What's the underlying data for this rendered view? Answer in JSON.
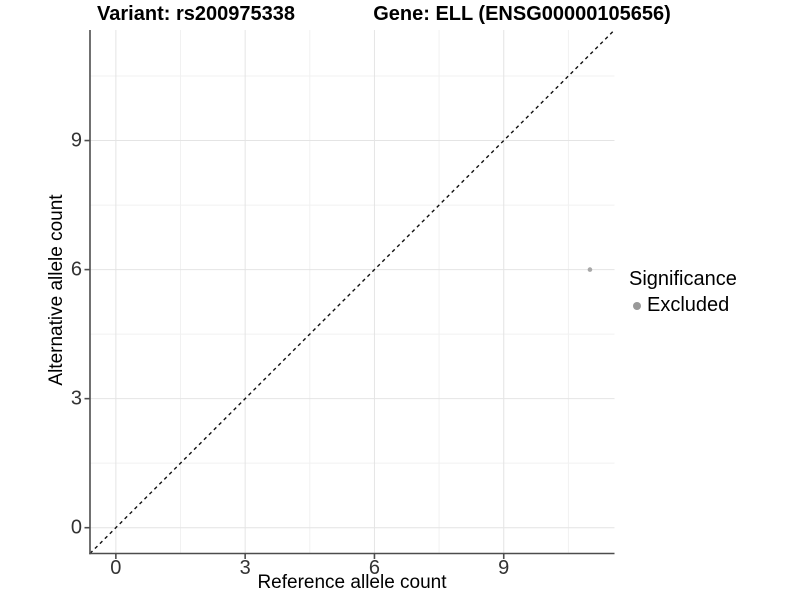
{
  "chart_data": {
    "type": "scatter",
    "titles": {
      "left": "Variant: rs200975338",
      "right": "Gene: ELL (ENSG00000105656)"
    },
    "xlabel": "Reference allele count",
    "ylabel": "Alternative allele count",
    "xlim": [
      -0.6,
      11.57
    ],
    "ylim": [
      -0.6,
      11.57
    ],
    "x_ticks": [
      0,
      3,
      6,
      9
    ],
    "y_ticks": [
      0,
      3,
      6,
      9
    ],
    "x_minor_ticks": [
      1.5,
      4.5,
      7.5,
      10.5
    ],
    "y_minor_ticks": [
      1.5,
      4.5,
      7.5,
      10.5
    ],
    "grid": "major and minor, light gray on white, no top/right border",
    "series": [
      {
        "name": "Excluded",
        "color": "#a8a8a8",
        "marker": "circle",
        "point_radius": 2.3,
        "points": [
          {
            "x": 11,
            "y": 6
          }
        ]
      }
    ],
    "reference_line": {
      "type": "identity y=x",
      "style": "dashed",
      "color": "#111111",
      "from": [
        -0.6,
        -0.6
      ],
      "to": [
        11.57,
        11.57
      ]
    },
    "legend": {
      "position": "right",
      "title": "Significance",
      "entries": [
        {
          "label": "Excluded",
          "color": "#999999",
          "marker": "circle"
        }
      ]
    },
    "colors": {
      "background": "#ffffff",
      "grid_major": "#e4e4e4",
      "grid_minor": "#f1f1f1",
      "axis_line": "#4d4d4d",
      "tick_mark": "#4d4d4d",
      "tick_label": "#333333",
      "title_text": "#000000"
    }
  }
}
